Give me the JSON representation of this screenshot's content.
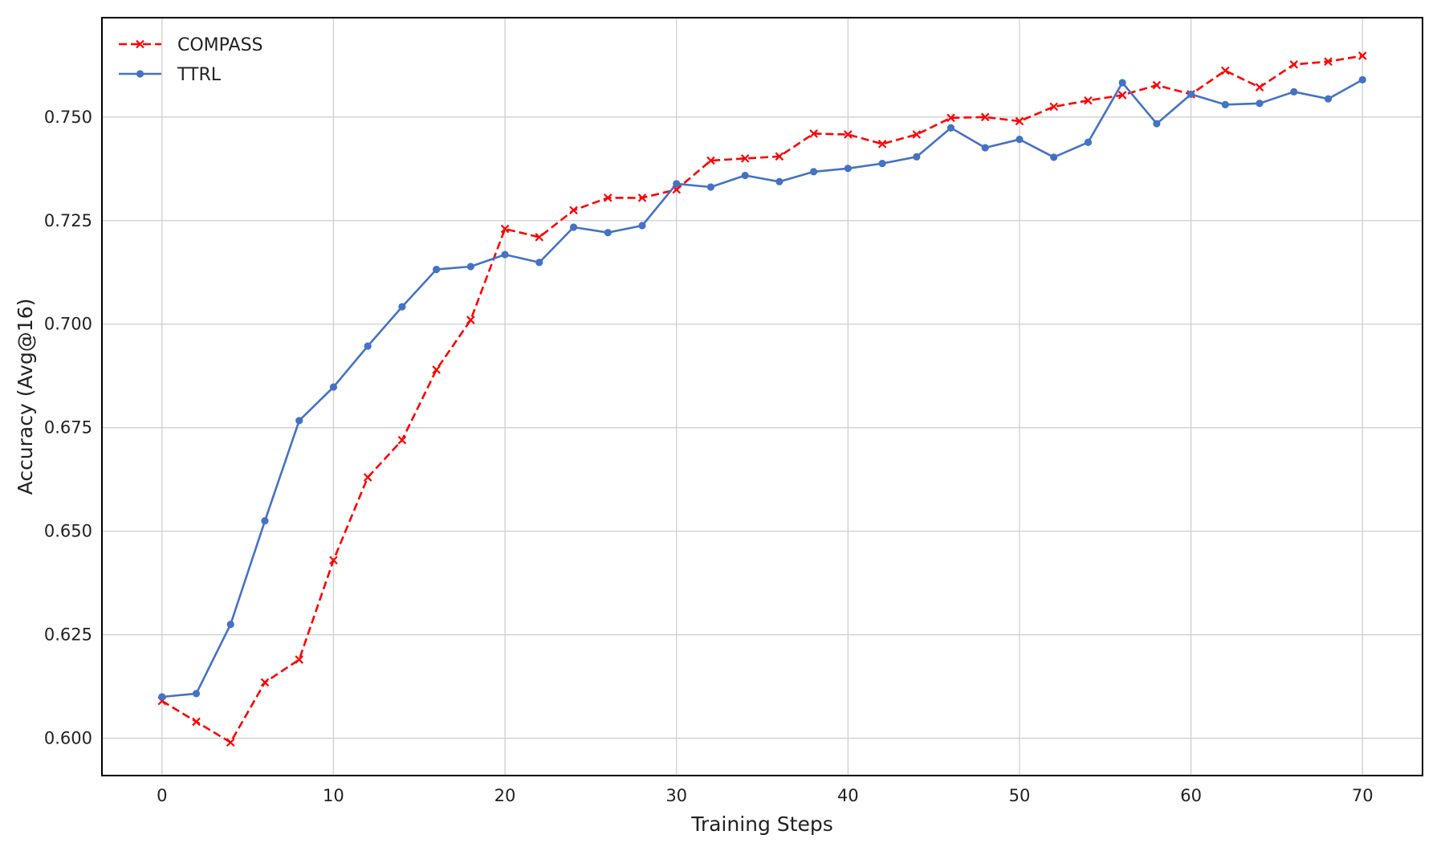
{
  "chart_data": {
    "type": "line",
    "title": "",
    "xlabel": "Training Steps",
    "ylabel": "Accuracy (Avg@16)",
    "xlim": [
      -3.5,
      73.5
    ],
    "ylim": [
      0.591,
      0.774
    ],
    "xticks": [
      0,
      10,
      20,
      30,
      40,
      50,
      60,
      70
    ],
    "yticks": [
      0.6,
      0.625,
      0.65,
      0.675,
      0.7,
      0.725,
      0.75
    ],
    "xtick_labels": [
      "0",
      "10",
      "20",
      "30",
      "40",
      "50",
      "60",
      "70"
    ],
    "ytick_labels": [
      "0.600",
      "0.625",
      "0.650",
      "0.675",
      "0.700",
      "0.725",
      "0.750"
    ],
    "grid": true,
    "legend_position": "top-left",
    "x": [
      0,
      2,
      4,
      6,
      8,
      10,
      12,
      14,
      16,
      18,
      20,
      22,
      24,
      26,
      28,
      30,
      32,
      34,
      36,
      38,
      40,
      42,
      44,
      46,
      48,
      50,
      52,
      54,
      56,
      58,
      60,
      62,
      64,
      66,
      68,
      70
    ],
    "series": [
      {
        "name": "COMPASS",
        "color": "#ff0000",
        "line_style": "dashed",
        "marker": "x",
        "values": [
          0.609,
          0.604,
          0.599,
          0.6135,
          0.619,
          0.643,
          0.663,
          0.672,
          0.689,
          0.701,
          0.723,
          0.721,
          0.7275,
          0.7305,
          0.7305,
          0.7325,
          0.7395,
          0.74,
          0.7405,
          0.746,
          0.7458,
          0.7435,
          0.7458,
          0.7498,
          0.75,
          0.749,
          0.7525,
          0.754,
          0.7553,
          0.7577,
          0.7555,
          0.7612,
          0.7572,
          0.7627,
          0.7634,
          0.7648
        ]
      },
      {
        "name": "TTRL",
        "color": "#4472c4",
        "line_style": "solid",
        "marker": "circle",
        "values": [
          0.61,
          0.6108,
          0.6275,
          0.6525,
          0.6767,
          0.6848,
          0.6947,
          0.7042,
          0.7132,
          0.7139,
          0.7168,
          0.7149,
          0.7234,
          0.7221,
          0.7238,
          0.7339,
          0.7331,
          0.7359,
          0.7344,
          0.7368,
          0.7376,
          0.7388,
          0.7404,
          0.7474,
          0.7426,
          0.7446,
          0.7403,
          0.7439,
          0.7583,
          0.7484,
          0.7555,
          0.753,
          0.7533,
          0.7561,
          0.7544,
          0.759
        ]
      }
    ]
  }
}
